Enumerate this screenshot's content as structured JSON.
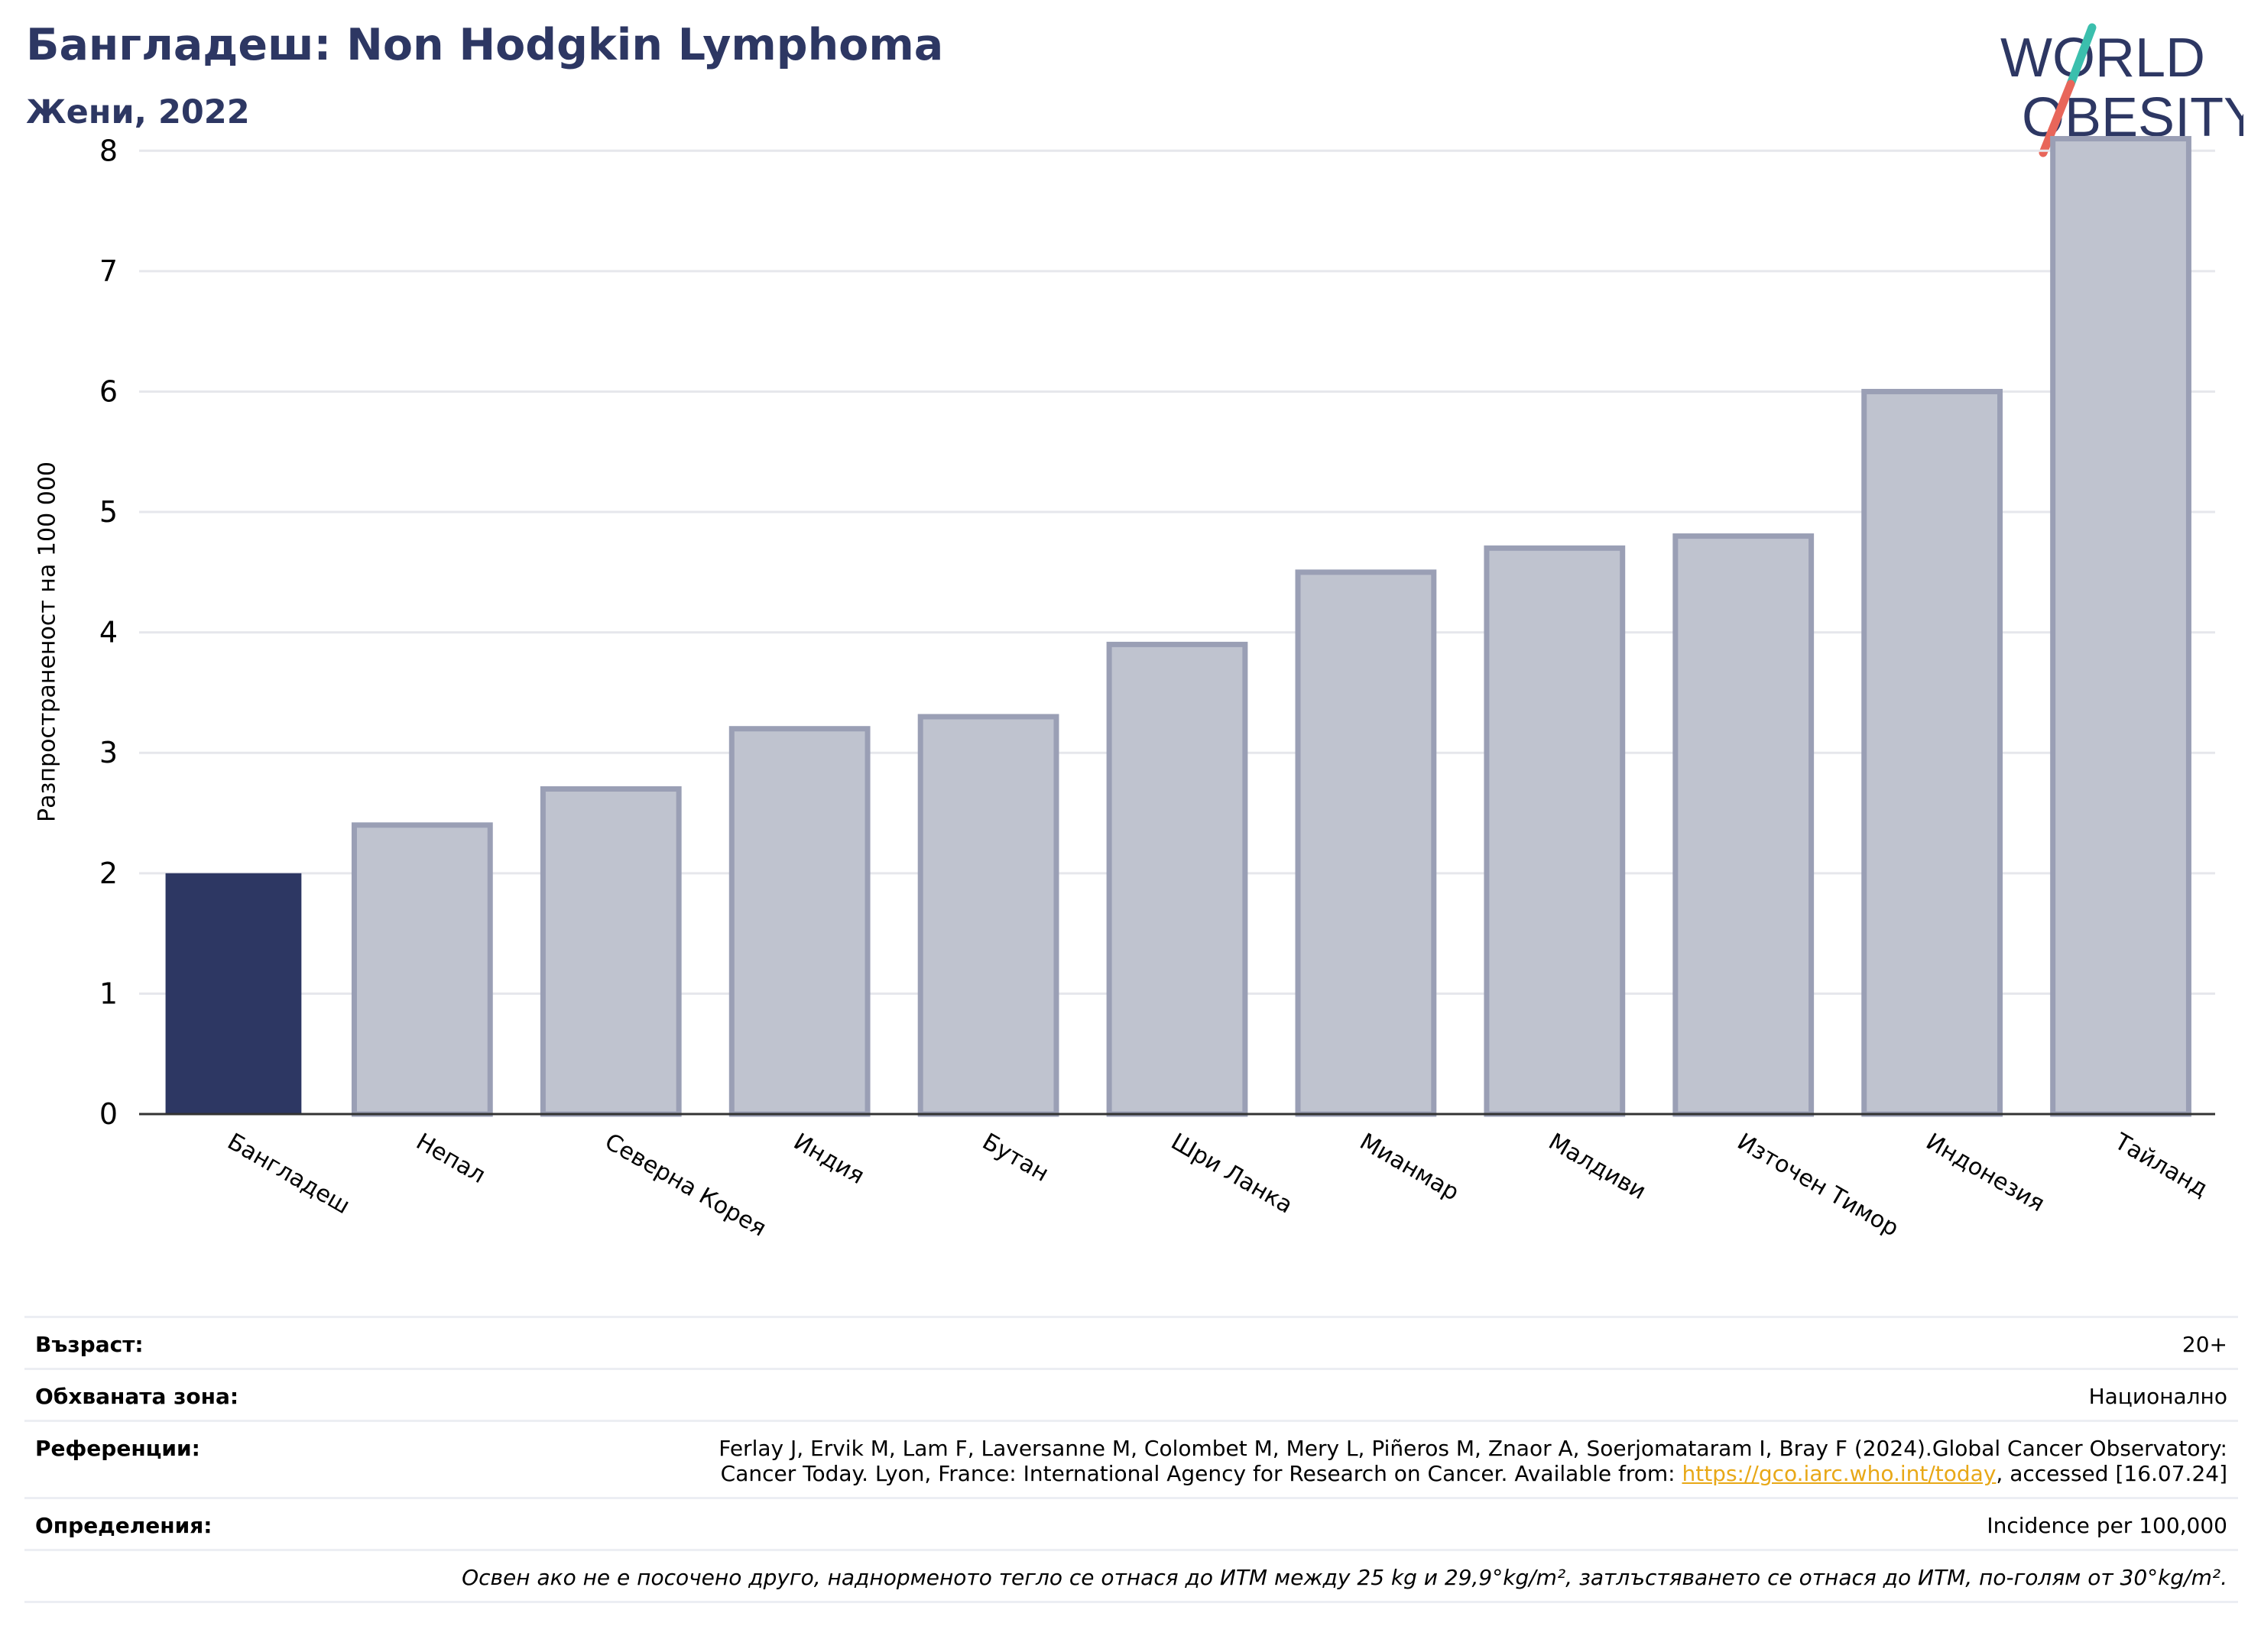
{
  "header": {
    "title": "Бангладеш: Non Hodgkin Lymphoma",
    "subtitle": "Жени, 2022"
  },
  "logo": {
    "line1": "WORLD",
    "line2": "OBESITY",
    "colors": {
      "text": "#2d3763",
      "slash_top": "#3bbfad",
      "slash_bottom": "#e8665a"
    }
  },
  "chart_data": {
    "type": "bar",
    "title": "",
    "xlabel": "",
    "ylabel": "Разпространеност  на 100 000",
    "categories": [
      "Бангладеш",
      "Непал",
      "Северна Корея",
      "Индия",
      "Бутан",
      "Шри Ланка",
      "Мианмар",
      "Малдиви",
      "Източен Тимор",
      "Индонезия",
      "Тайланд"
    ],
    "values": [
      2.0,
      2.4,
      2.7,
      3.2,
      3.3,
      3.9,
      4.5,
      4.7,
      4.8,
      6.0,
      8.1
    ],
    "highlight_index": 0,
    "ylim": [
      0,
      8.3
    ],
    "yticks": [
      0,
      1,
      2,
      3,
      4,
      5,
      6,
      7,
      8
    ],
    "grid": true,
    "colors": {
      "highlight": "#2d3763",
      "bar": "#bfc3cf",
      "bar_edge": "#9a9fb5",
      "grid": "#e6e7ec",
      "axis": "#333333"
    }
  },
  "info": {
    "age_label": "Възраст:",
    "age_value": "20+",
    "coverage_label": "Обхваната зона:",
    "coverage_value": "Национално",
    "references_label": "Референции:",
    "references_line1": "Ferlay J, Ervik M, Lam F, Laversanne M, Colombet M, Mery L, Piñeros M, Znaor A, Soerjomataram I, Bray F (2024).Global Cancer Observatory:",
    "references_line2_pre": "Cancer Today. Lyon, France: International Agency for Research on Cancer. Available from: ",
    "references_link": "https://gco.iarc.who.int/today",
    "references_line2_post": ", accessed [16.07.24]",
    "definitions_label": "Определения:",
    "definitions_value": "Incidence per 100,000",
    "note": "Освен ако не е посочено друго, наднорменото тегло се отнася до ИТМ между 25 kg и 29,9°kg/m², затлъстяването се отнася до ИТМ, по-голям от 30°kg/m²."
  }
}
